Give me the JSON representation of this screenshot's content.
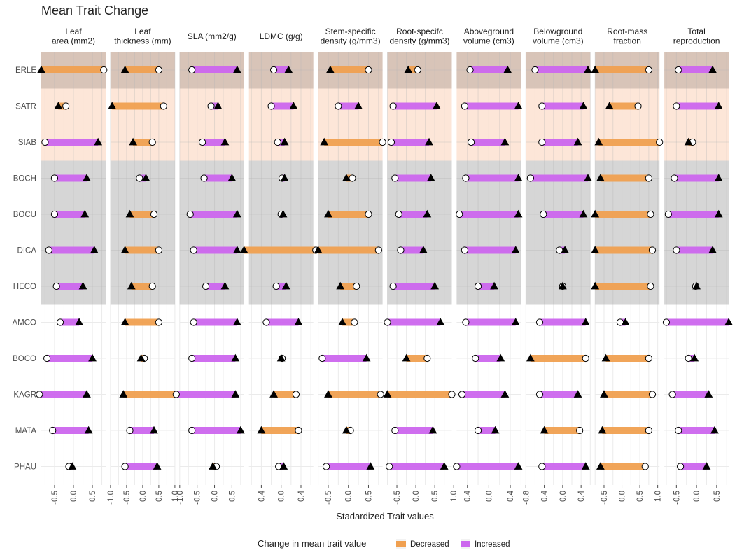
{
  "chart_data": {
    "type": "dumbbell",
    "title": "Mean Trait Change",
    "xlabel": "Stadardized Trait values",
    "legend": {
      "title": "Change in mean trait value",
      "position": "bottom",
      "entries": [
        {
          "label": "Decreased",
          "color": "#f0a050"
        },
        {
          "label": "Increased",
          "color": "#cc66ee"
        }
      ]
    },
    "colors": {
      "decreased": "#f0a050",
      "increased": "#cc66ee",
      "bg_band1": "#d8c4b8",
      "bg_band2": "#fde6d8",
      "bg_band3": "#d6d6d6",
      "bg_band4": "#ffffff"
    },
    "marker_legend": {
      "before": "open-circle",
      "after": "filled-triangle"
    },
    "species": [
      "ERLE",
      "SATR",
      "SIAB",
      "BOCH",
      "BOCU",
      "DICA",
      "HECO",
      "AMCO",
      "BOCO",
      "KAGR",
      "MATA",
      "PHAU"
    ],
    "groups": [
      {
        "species": [
          "ERLE"
        ],
        "color": "bg_band1"
      },
      {
        "species": [
          "SATR",
          "SIAB"
        ],
        "color": "bg_band2"
      },
      {
        "species": [
          "BOCH",
          "BOCU",
          "DICA",
          "HECO"
        ],
        "color": "bg_band3"
      },
      {
        "species": [
          "AMCO",
          "BOCO",
          "KAGR",
          "MATA",
          "PHAU"
        ],
        "color": "bg_band4"
      }
    ],
    "panels": [
      {
        "label": [
          "Leaf",
          "area (mm2)"
        ],
        "xlim": [
          -0.85,
          0.85
        ],
        "ticks": [
          -0.5,
          0,
          0.5
        ],
        "tick_labels": [
          "-0.5",
          "0.0",
          "0.5"
        ],
        "circle": [
          0.8,
          -0.2,
          -0.75,
          -0.5,
          -0.5,
          -0.65,
          -0.45,
          -0.35,
          -0.7,
          -0.9,
          -0.55,
          -0.12
        ],
        "triangle": [
          -0.85,
          -0.4,
          0.65,
          0.35,
          0.3,
          0.55,
          0.25,
          0.15,
          0.5,
          0.35,
          0.4,
          -0.03
        ]
      },
      {
        "label": [
          "Leaf",
          "thickness (mm)"
        ],
        "xlim": [
          -1.0,
          1.0
        ],
        "ticks": [
          -1.0,
          -0.5,
          0,
          0.5,
          1.0
        ],
        "tick_labels": [
          "-1.0",
          "-0.5",
          "0.0",
          "0.5",
          "1.0"
        ],
        "circle": [
          0.5,
          0.65,
          0.3,
          -0.1,
          0.35,
          0.5,
          0.3,
          0.5,
          0.05,
          1.15,
          -0.4,
          -0.55
        ],
        "triangle": [
          -0.55,
          -0.95,
          -0.3,
          0.1,
          -0.4,
          -0.55,
          -0.35,
          -0.55,
          -0.05,
          -0.6,
          0.35,
          0.45
        ]
      },
      {
        "label": [
          "SLA (mm2/g)"
        ],
        "xlim": [
          -1.0,
          0.85
        ],
        "ticks": [
          -1.0,
          -0.5,
          0,
          0.5
        ],
        "tick_labels": [
          "-1.0",
          "-0.5",
          "0.0",
          "0.5"
        ],
        "circle": [
          -0.65,
          -0.1,
          -0.35,
          -0.3,
          -0.7,
          -0.6,
          -0.25,
          -0.6,
          -0.65,
          -1.1,
          -0.65,
          0.05
        ],
        "triangle": [
          0.65,
          0.1,
          0.3,
          0.5,
          0.65,
          0.65,
          0.3,
          0.65,
          0.6,
          0.6,
          0.75,
          -0.05
        ]
      },
      {
        "label": [
          "LDMC (g/g)"
        ],
        "xlim": [
          -0.65,
          0.65
        ],
        "ticks": [
          -0.4,
          0,
          0.4
        ],
        "tick_labels": [
          "-0.4",
          "0.0",
          "0.4"
        ],
        "circle": [
          -0.15,
          -0.2,
          -0.07,
          0.02,
          0.0,
          0.7,
          -0.1,
          -0.3,
          0.02,
          0.3,
          0.35,
          -0.05
        ],
        "triangle": [
          0.15,
          0.25,
          0.07,
          0.07,
          0.04,
          -0.75,
          0.1,
          0.35,
          0.0,
          -0.15,
          -0.4,
          0.05
        ]
      },
      {
        "label": [
          "Stem-specific",
          "density (g/mm3)"
        ],
        "xlim": [
          -0.75,
          0.85
        ],
        "ticks": [
          -0.5,
          0,
          0.5
        ],
        "tick_labels": [
          "-0.5",
          "0.0",
          "0.5"
        ],
        "circle": [
          0.5,
          -0.25,
          0.85,
          0.1,
          0.5,
          0.75,
          0.2,
          0.15,
          -0.65,
          0.8,
          0.05,
          -0.55
        ],
        "triangle": [
          -0.45,
          0.25,
          -0.6,
          -0.05,
          -0.5,
          -0.75,
          -0.2,
          -0.15,
          0.45,
          -0.5,
          -0.05,
          0.55
        ]
      },
      {
        "label": [
          "Root-specifc",
          "density (g/mm3)"
        ],
        "xlim": [
          -0.75,
          0.95
        ],
        "ticks": [
          -0.5,
          0,
          0.5,
          1.0
        ],
        "tick_labels": [
          "-0.5",
          "0.0",
          "0.5",
          "1.0"
        ],
        "circle": [
          0.05,
          -0.6,
          -0.65,
          -0.55,
          -0.45,
          -0.4,
          -0.6,
          -0.75,
          0.3,
          0.95,
          -0.55,
          -0.7
        ],
        "triangle": [
          -0.2,
          0.55,
          0.35,
          0.4,
          0.3,
          0.2,
          0.5,
          0.65,
          -0.25,
          -0.75,
          0.45,
          0.75
        ]
      },
      {
        "label": [
          "Aboveground",
          "volume (cm3)"
        ],
        "xlim": [
          -0.6,
          0.6
        ],
        "ticks": [
          -0.4,
          0,
          0.4
        ],
        "tick_labels": [
          "-0.4",
          "0.0",
          "0.4"
        ],
        "circle": [
          -0.35,
          -0.45,
          -0.33,
          -0.43,
          -0.55,
          -0.45,
          -0.2,
          -0.43,
          -0.25,
          -0.5,
          -0.2,
          -0.6
        ],
        "triangle": [
          0.35,
          0.55,
          0.3,
          0.55,
          0.55,
          0.5,
          0.1,
          0.5,
          0.22,
          0.3,
          0.12,
          0.55
        ]
      },
      {
        "label": [
          "Belowground",
          "volume (cm3)"
        ],
        "xlim": [
          -0.8,
          0.6
        ],
        "ticks": [
          -0.8,
          -0.4,
          0,
          0.4
        ],
        "tick_labels": [
          "-0.8",
          "-0.4",
          "0.0",
          "0.4"
        ],
        "circle": [
          -0.6,
          -0.45,
          -0.45,
          -0.7,
          -0.42,
          -0.07,
          0.0,
          -0.5,
          0.5,
          -0.5,
          0.37,
          -0.45
        ],
        "triangle": [
          0.55,
          0.45,
          0.33,
          0.55,
          0.45,
          0.05,
          0.0,
          0.5,
          -0.7,
          0.33,
          -0.4,
          0.5
        ]
      },
      {
        "label": [
          "Root-mass",
          "fraction"
        ],
        "xlim": [
          -0.75,
          1.05
        ],
        "ticks": [
          -0.5,
          0,
          0.5,
          1.0
        ],
        "tick_labels": [
          "-0.5",
          "0.0",
          "0.5",
          "1.0"
        ],
        "circle": [
          0.75,
          0.45,
          1.05,
          0.75,
          0.8,
          0.85,
          0.8,
          -0.05,
          0.75,
          0.85,
          0.75,
          0.65
        ],
        "triangle": [
          -0.75,
          -0.35,
          -0.65,
          -0.6,
          -0.75,
          -0.75,
          -0.75,
          0.1,
          -0.45,
          -0.5,
          -0.55,
          -0.6
        ]
      },
      {
        "label": [
          "Total",
          "reproduction"
        ],
        "xlim": [
          -0.8,
          0.8
        ],
        "ticks": [
          -0.5,
          0,
          0.5
        ],
        "tick_labels": [
          "-0.5",
          "0.0",
          "0.5"
        ],
        "circle": [
          -0.45,
          -0.5,
          -0.1,
          -0.55,
          -0.7,
          -0.5,
          -0.02,
          -0.75,
          -0.2,
          -0.6,
          -0.45,
          -0.4
        ],
        "triangle": [
          0.4,
          0.55,
          -0.2,
          0.55,
          0.55,
          0.4,
          0.0,
          0.8,
          -0.05,
          0.3,
          0.45,
          0.25
        ]
      }
    ]
  }
}
